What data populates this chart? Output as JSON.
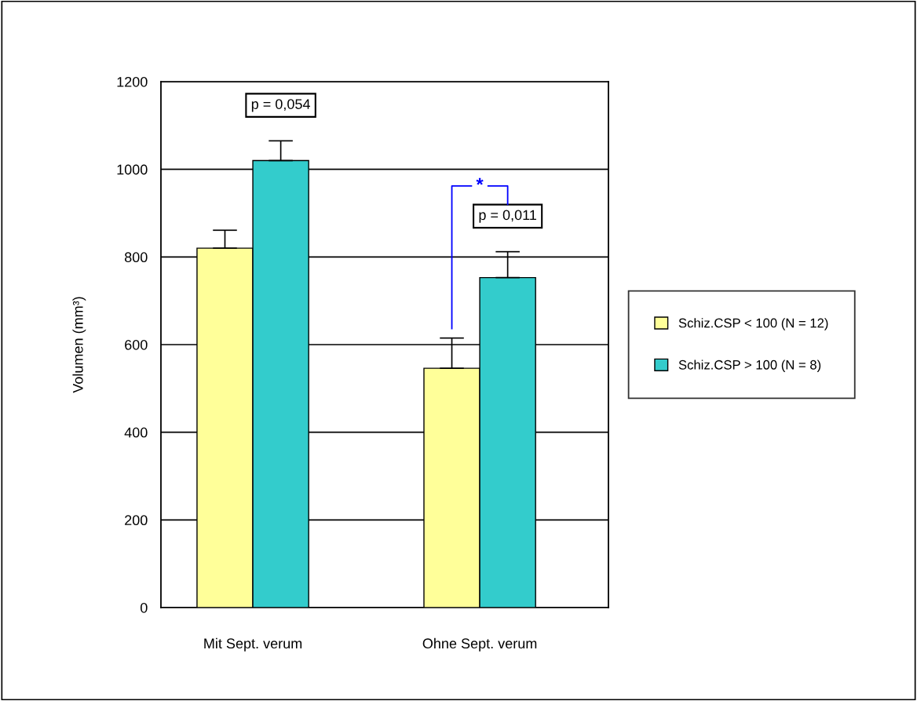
{
  "chart_data": {
    "type": "bar",
    "ylabel": "Volumen (mm³)",
    "categories": [
      "Mit Sept. verum",
      "Ohne Sept. verum"
    ],
    "series": [
      {
        "name": "Schiz.CSP < 100 (N = 12)",
        "color": "#ffff99",
        "values": [
          820,
          546
        ],
        "errors": [
          [
            820,
            861
          ],
          [
            546,
            615
          ]
        ]
      },
      {
        "name": "Schiz.CSP > 100 (N = 8)",
        "color": "#33cccc",
        "values": [
          1020,
          753
        ],
        "errors": [
          [
            1020,
            1065
          ],
          [
            753,
            812
          ]
        ]
      }
    ],
    "ylim": [
      0,
      1200
    ],
    "yticks": [
      0,
      200,
      400,
      600,
      800,
      1000,
      1200
    ],
    "grid": "y",
    "legend": "right",
    "annotations": [
      "p = 0,054",
      "p = 0,011",
      "*"
    ]
  }
}
